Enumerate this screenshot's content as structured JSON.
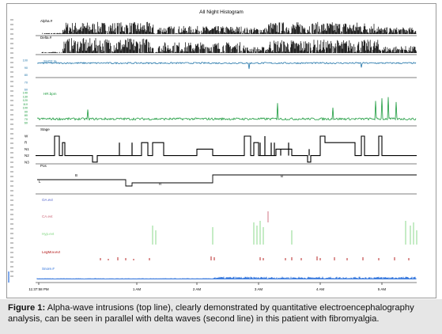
{
  "chart_data": {
    "type": "line",
    "title": "All Night Histogram",
    "x_tick_labels": [
      "11:37:58 PM",
      "1 AM",
      "2 AM",
      "3 AM",
      "4 AM",
      "5 AM"
    ],
    "hypnogram_stage_labels": [
      "W",
      "R",
      "N1",
      "N2",
      "N3"
    ],
    "position_labels": [
      "L",
      "B",
      "R"
    ],
    "channels": [
      {
        "name": "Alpha.#",
        "kind": "histogram",
        "color": "#000000"
      },
      {
        "name": "Delta.#",
        "kind": "histogram",
        "color": "#000000"
      },
      {
        "name": "SpO2.%",
        "kind": "line",
        "color": "#1f73a8",
        "y_ticks": [
          "100",
          "90",
          "80",
          "70",
          "60"
        ],
        "baseline_percent": 96
      },
      {
        "name": "HR.bpm",
        "kind": "line",
        "color": "#1a9a3c",
        "y_ticks": [
          "140",
          "130",
          "120",
          "110",
          "100",
          "90",
          "80",
          "70",
          "60"
        ],
        "baseline_bpm": 70
      },
      {
        "name": "Stage",
        "kind": "hypnogram",
        "color": "#000000"
      },
      {
        "name": "Pos",
        "kind": "position",
        "color": "#000000"
      },
      {
        "name": "OA.evt",
        "kind": "events",
        "color": "#5566cc"
      },
      {
        "name": "CA.evt",
        "kind": "events",
        "color": "#cc6677"
      },
      {
        "name": "Hyp.evt",
        "kind": "events",
        "color": "#7fd67f"
      },
      {
        "name": "LegMov.evt",
        "kind": "events",
        "color": "#b01010"
      },
      {
        "name": "Snore.#",
        "kind": "histogram",
        "color": "#2a6fdb"
      }
    ]
  },
  "caption": {
    "label": "Figure 1:",
    "text": " Alpha-wave intrusions (top line), clearly demonstrated by quantitative electroencephalography analysis, can be seen in parallel with delta waves (second line) in this patient with fibromyalgia."
  }
}
